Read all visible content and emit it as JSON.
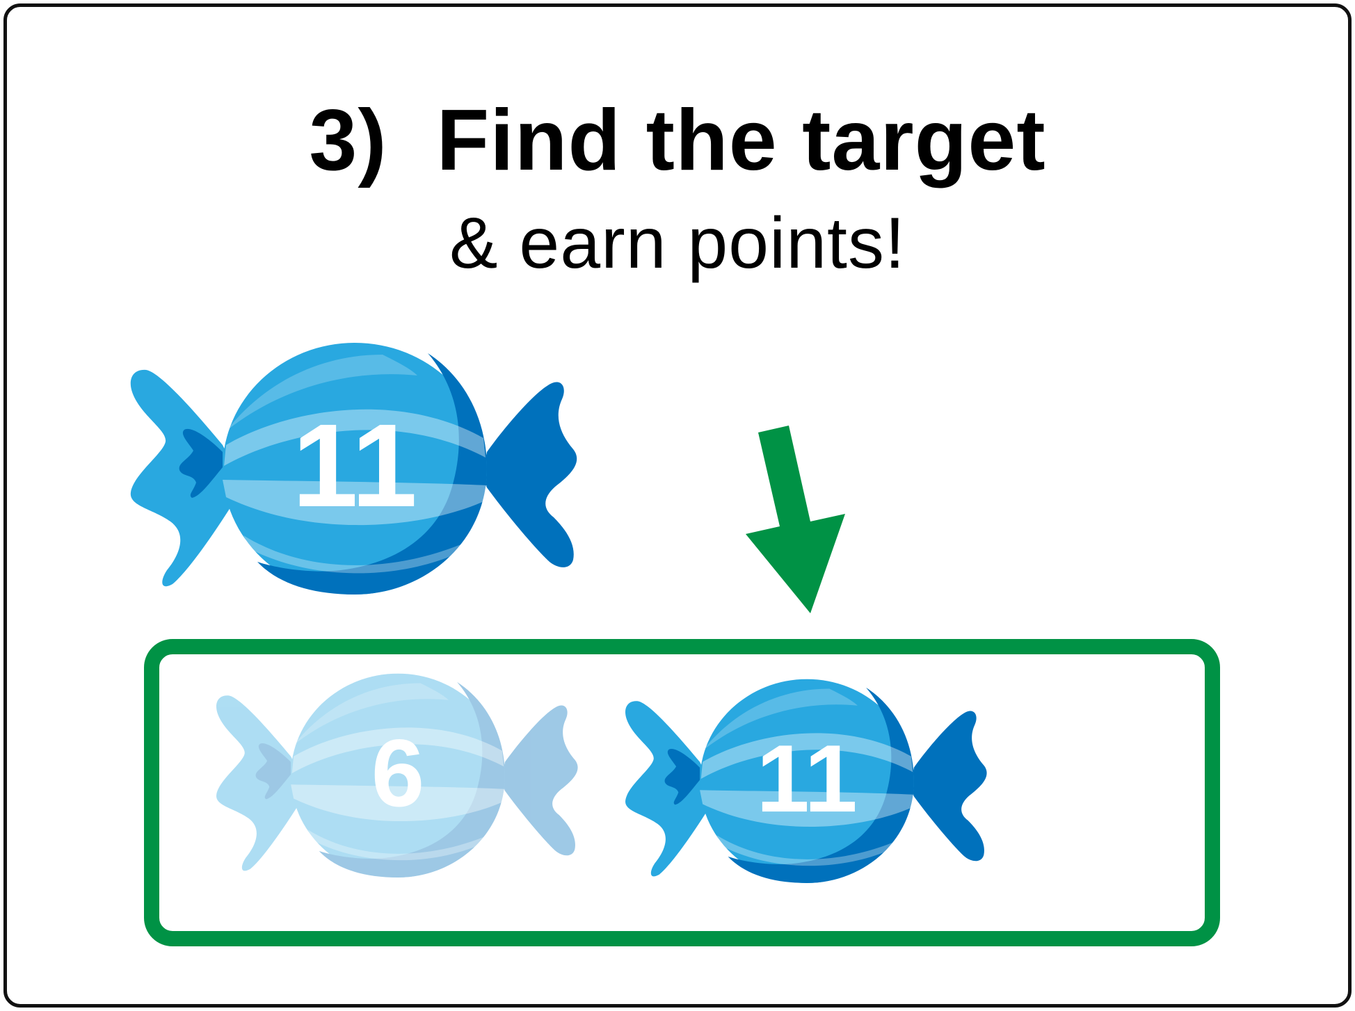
{
  "instruction": {
    "title": "3)  Find the target",
    "subtitle": "& earn points!"
  },
  "target_candy": {
    "number": "11",
    "icon": "candy-icon",
    "color": "#29A8E0"
  },
  "hint_arrow": {
    "icon": "arrow-down-icon",
    "color": "#009245"
  },
  "choice_box": {
    "border_color": "#009245",
    "candies": [
      {
        "number": "6",
        "state": "faded",
        "icon": "candy-icon"
      },
      {
        "number": "11",
        "state": "active",
        "icon": "candy-icon"
      }
    ]
  }
}
